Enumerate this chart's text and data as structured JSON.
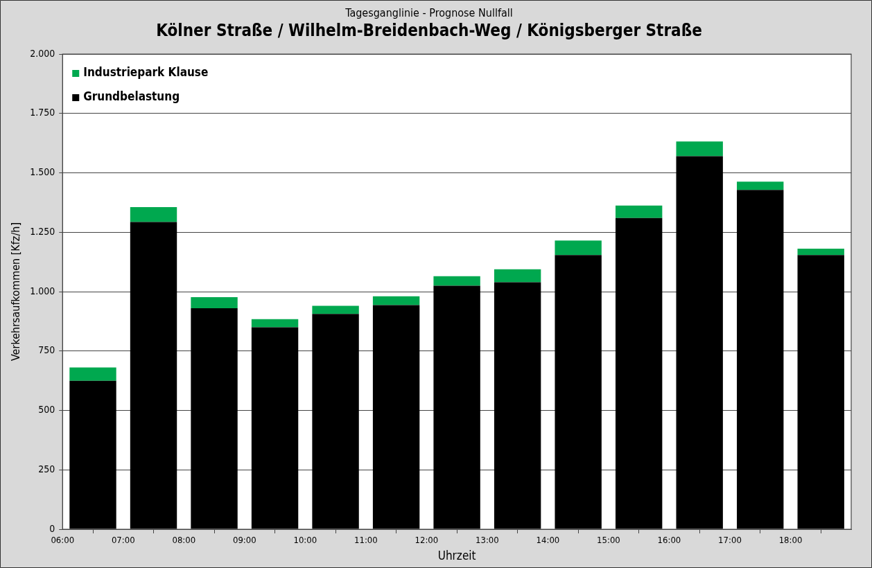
{
  "chart_data": {
    "type": "bar",
    "title": "Kölner Straße / Wilhelm-Breidenbach-Weg / Königsberger Straße",
    "subtitle": "Tagesganglinie - Prognose Nullfall",
    "xlabel": "Uhrzeit",
    "ylabel": "Verkehrsaufkommen [Kfz/h]",
    "x": [
      6.5,
      7.5,
      8.5,
      9.5,
      10.5,
      11.5,
      12.5,
      13.5,
      14.5,
      15.5,
      16.5,
      17.5,
      18.5
    ],
    "stacked": true,
    "series": [
      {
        "name": "Grundbelastung",
        "color": "#000000",
        "values": [
          625,
          1293,
          930,
          850,
          906,
          943,
          1025,
          1039,
          1154,
          1310,
          1570,
          1428,
          1154
        ]
      },
      {
        "name": "Industriepark Klause",
        "color": "#00a84f",
        "values": [
          56,
          63,
          47,
          34,
          34,
          37,
          40,
          55,
          61,
          52,
          62,
          35,
          27
        ]
      }
    ],
    "xlim": [
      6,
      19
    ],
    "xticks": [
      {
        "value": 6,
        "label": "06:00"
      },
      {
        "value": 7,
        "label": "07:00"
      },
      {
        "value": 8,
        "label": "08:00"
      },
      {
        "value": 9,
        "label": "09:00"
      },
      {
        "value": 10,
        "label": "10:00"
      },
      {
        "value": 11,
        "label": "11:00"
      },
      {
        "value": 12,
        "label": "12:00"
      },
      {
        "value": 13,
        "label": "13:00"
      },
      {
        "value": 14,
        "label": "14:00"
      },
      {
        "value": 15,
        "label": "15:00"
      },
      {
        "value": 16,
        "label": "16:00"
      },
      {
        "value": 17,
        "label": "17:00"
      },
      {
        "value": 18,
        "label": "18:00"
      },
      {
        "value": 19,
        "label": null
      }
    ],
    "ylim": [
      0,
      2000
    ],
    "yticks": [
      0,
      250,
      500,
      750,
      {
        "value": 1000,
        "label": "1.000"
      },
      {
        "value": 1250,
        "label": "1.250"
      },
      {
        "value": 1500,
        "label": "1.500"
      },
      {
        "value": 1750,
        "label": "1.750"
      },
      {
        "value": 2000,
        "label": "2.000"
      }
    ],
    "grid": "y",
    "legend": "top left"
  }
}
